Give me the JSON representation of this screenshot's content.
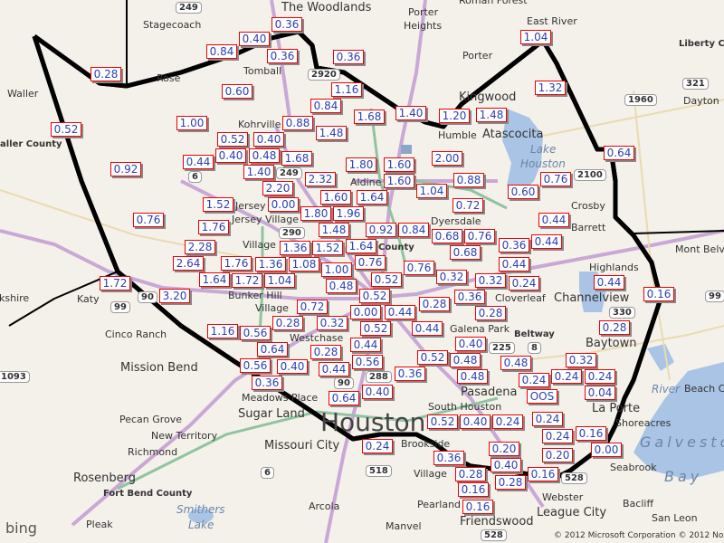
{
  "map": {
    "provider_logo": "bing",
    "copyright": "© 2012 Microsoft Corporation © 2012 Nokia",
    "colors": {
      "label_border": "#ee0000",
      "label_text": "#2a3fb0",
      "highway": "#c9a8d6",
      "tollway": "#8fc4a0",
      "water": "#a9c4e4",
      "boundary": "#000000"
    },
    "places": [
      "Stagecoach",
      "The Woodlands",
      "Porter",
      "Heights",
      "Porter",
      "Roman Forest",
      "East River",
      "Liberty C",
      "Waller",
      "aller County",
      "Kohrville",
      "Tomball",
      "Kingwood",
      "Humble",
      "Atascocita",
      "Lake",
      "Houston",
      "Dayton",
      "Crosby",
      "Barrett",
      "Mont Belvi",
      "Highlands",
      "Channelview",
      "Cloverleaf",
      "Beltway",
      "Baytown",
      "Aldine",
      "Dyersdale",
      "County",
      "Jersey",
      "Village",
      "Houston",
      "Galena Park",
      "Pasadena",
      "South Houston",
      "Katy",
      "kshire",
      "Cinco Ranch",
      "Mission Bend",
      "Meadows Place",
      "Sugar Land",
      "Missouri City",
      "Pecan Grove",
      "New Territory",
      "Richmond",
      "Rosenberg",
      "Fort Bend County",
      "Pleak",
      "Arcola",
      "Manvel",
      "Friendswood",
      "League City",
      "Webster",
      "Seabrook",
      "Shoreacres",
      "La Porte",
      "Bacliff",
      "San Leon",
      "Beach City",
      "Galveston",
      "Bay",
      "Bunker Hill",
      "Village",
      "Westchase",
      "Brookside",
      "Village",
      "Pearland",
      "Smithers",
      "Lake",
      "Rose",
      "Jersey Village",
      "River"
    ],
    "shields": [
      "249",
      "2920",
      "1960",
      "321",
      "2100",
      "6",
      "249",
      "90",
      "99",
      "330",
      "99",
      "1093",
      "225",
      "8",
      "288",
      "90",
      "518",
      "528",
      "528",
      "6",
      "290"
    ],
    "rainfall_labels": [
      "0.36",
      "0.40",
      "0.84",
      "0.36",
      "0.36",
      "0.28",
      "0.60",
      "1.04",
      "1.32",
      "1.16",
      "0.84",
      "1.68",
      "1.40",
      "1.20",
      "1.48",
      "0.88",
      "1.48",
      "1.00",
      "0.52",
      "0.52",
      "0.40",
      "0.44",
      "0.40",
      "0.48",
      "1.68",
      "0.92",
      "1.80",
      "2.00",
      "0.64",
      "2.32",
      "1.60",
      "0.88",
      "0.76",
      "1.40",
      "1.60",
      "1.04",
      "0.60",
      "2.20",
      "1.60",
      "1.64",
      "0.72",
      "1.52",
      "1.76",
      "0.00",
      "1.80",
      "1.96",
      "0.44",
      "0.76",
      "1.48",
      "1.36",
      "0.92",
      "0.84",
      "0.68",
      "0.76",
      "0.36",
      "0.44",
      "1.64",
      "0.68",
      "2.28",
      "1.52",
      "0.76",
      "0.44",
      "2.64",
      "1.00",
      "0.52",
      "0.76",
      "0.32",
      "1.08",
      "1.76",
      "1.72",
      "1.36",
      "0.48",
      "0.52",
      "0.32",
      "0.24",
      "3.20",
      "1.64",
      "1.04",
      "0.72",
      "1.72",
      "0.00",
      "0.44",
      "0.28",
      "0.36",
      "0.44",
      "0.16",
      "1.16",
      "0.56",
      "0.28",
      "0.44",
      "0.52",
      "0.28",
      "0.28",
      "0.64",
      "0.32",
      "0.44",
      "0.40",
      "0.32",
      "0.40",
      "0.28",
      "0.56",
      "0.44",
      "0.56",
      "0.52",
      "0.48",
      "0.48",
      "0.36",
      "0.36",
      "0.40",
      "0.64",
      "0.48",
      "0.24",
      "0.24",
      "0.24",
      "OOS",
      "0.04",
      "0.24",
      "0.52",
      "0.40",
      "0.24",
      "0.24",
      "0.24",
      "0.16",
      "0.36",
      "0.28",
      "0.20",
      "0.20",
      "0.00",
      "0.16",
      "0.40",
      "0.16",
      "0.16",
      "0.28"
    ]
  }
}
